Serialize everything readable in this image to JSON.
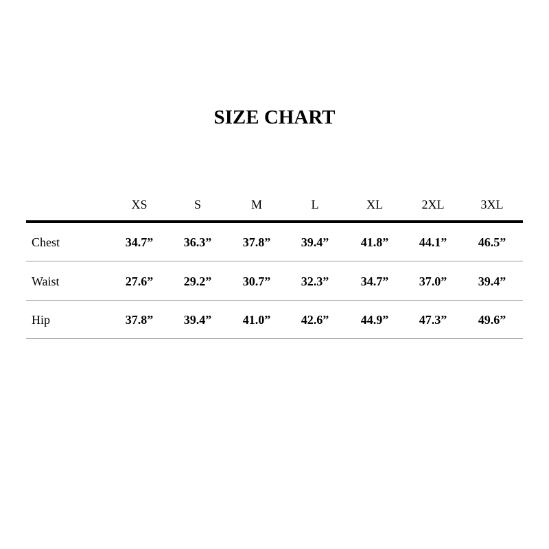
{
  "title": "SIZE CHART",
  "columns": [
    "XS",
    "S",
    "M",
    "L",
    "XL",
    "2XL",
    "3XL"
  ],
  "rows": [
    {
      "label": "Chest",
      "values": [
        "34.7”",
        "36.3”",
        "37.8”",
        "39.4”",
        "41.8”",
        "44.1”",
        "46.5”"
      ]
    },
    {
      "label": "Waist",
      "values": [
        "27.6”",
        "29.2”",
        "30.7”",
        "32.3”",
        "34.7”",
        "37.0”",
        "39.4”"
      ]
    },
    {
      "label": "Hip",
      "values": [
        "37.8”",
        "39.4”",
        "41.0”",
        "42.6”",
        "44.9”",
        "47.3”",
        "49.6”"
      ]
    }
  ]
}
